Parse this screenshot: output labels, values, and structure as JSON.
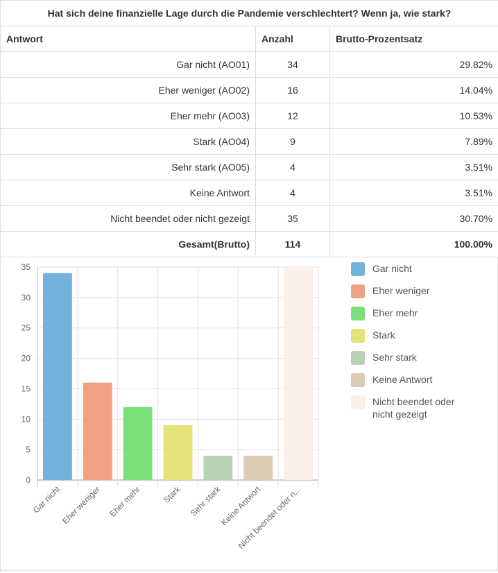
{
  "title": "Hat sich deine finanzielle Lage durch die Pandemie verschlechtert? Wenn ja, wie stark?",
  "headers": {
    "answer": "Antwort",
    "count": "Anzahl",
    "percent": "Brutto-Prozentsatz"
  },
  "rows": [
    {
      "answer": "Gar nicht (AO01)",
      "count": "34",
      "percent": "29.82%"
    },
    {
      "answer": "Eher weniger (AO02)",
      "count": "16",
      "percent": "14.04%"
    },
    {
      "answer": "Eher mehr (AO03)",
      "count": "12",
      "percent": "10.53%"
    },
    {
      "answer": "Stark (AO04)",
      "count": "9",
      "percent": "7.89%"
    },
    {
      "answer": "Sehr stark (AO05)",
      "count": "4",
      "percent": "3.51%"
    },
    {
      "answer": "Keine Antwort",
      "count": "4",
      "percent": "3.51%"
    },
    {
      "answer": "Nicht beendet oder nicht gezeigt",
      "count": "35",
      "percent": "30.70%"
    }
  ],
  "total": {
    "answer": "Gesamt(Brutto)",
    "count": "114",
    "percent": "100.00%"
  },
  "chart_data": {
    "type": "bar",
    "categories": [
      "Gar nicht",
      "Eher weniger",
      "Eher mehr",
      "Stark",
      "Sehr stark",
      "Keine Antwort",
      "Nicht beendet oder n..."
    ],
    "values": [
      34,
      16,
      12,
      9,
      4,
      4,
      35
    ],
    "colors": [
      "#72b2dd",
      "#f0a084",
      "#7be07a",
      "#e3e378",
      "#b9d2b6",
      "#ddccb4",
      "#faefe9"
    ],
    "legend": [
      "Gar nicht",
      "Eher weniger",
      "Eher mehr",
      "Stark",
      "Sehr stark",
      "Keine Antwort",
      "Nicht beendet oder nicht gezeigt"
    ],
    "yticks": [
      "0",
      "5",
      "10",
      "15",
      "20",
      "25",
      "30",
      "35"
    ],
    "ylim": [
      0,
      35
    ],
    "legend_position": "right",
    "grid": true
  }
}
